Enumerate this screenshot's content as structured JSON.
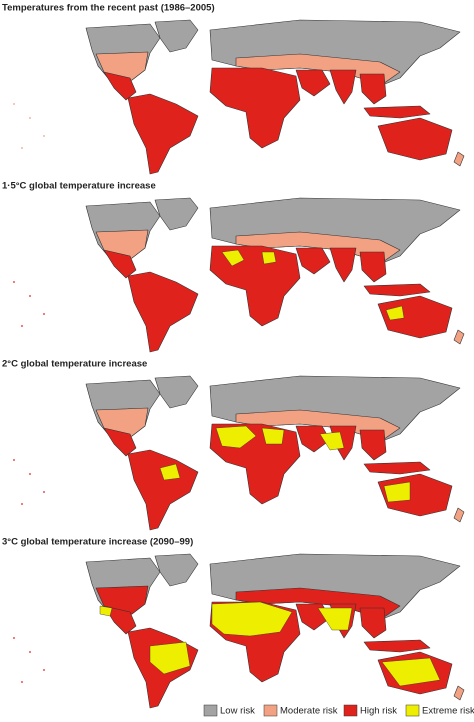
{
  "panels": [
    {
      "title": "Temperatures from the recent past (1986–2005)"
    },
    {
      "title": "1·5°C global temperature increase"
    },
    {
      "title": "2°C global temperature increase"
    },
    {
      "title": "3°C global temperature increase (2090–99)"
    }
  ],
  "legend": {
    "items": [
      {
        "label": "Low risk",
        "color": "#a3a3a3"
      },
      {
        "label": "Moderate risk",
        "color": "#f2a283"
      },
      {
        "label": "High risk",
        "color": "#e0221c"
      },
      {
        "label": "Extreme risk",
        "color": "#eeee00"
      }
    ]
  }
}
